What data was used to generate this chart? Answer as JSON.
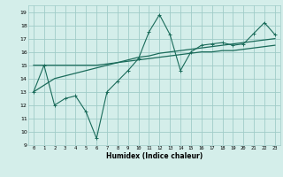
{
  "x": [
    0,
    1,
    2,
    3,
    4,
    5,
    6,
    7,
    8,
    9,
    10,
    11,
    12,
    13,
    14,
    15,
    16,
    17,
    18,
    19,
    20,
    21,
    22,
    23
  ],
  "line1_y": [
    15.0,
    15.0,
    15.0,
    15.0,
    15.0,
    15.0,
    15.0,
    15.1,
    15.2,
    15.3,
    15.4,
    15.5,
    15.6,
    15.7,
    15.8,
    15.9,
    16.0,
    16.0,
    16.1,
    16.1,
    16.2,
    16.3,
    16.4,
    16.5
  ],
  "line2_y": [
    13.0,
    13.5,
    14.0,
    14.2,
    14.4,
    14.6,
    14.8,
    15.0,
    15.2,
    15.4,
    15.6,
    15.7,
    15.9,
    16.0,
    16.1,
    16.2,
    16.3,
    16.4,
    16.5,
    16.6,
    16.7,
    16.8,
    16.9,
    17.0
  ],
  "line3_y": [
    13.0,
    15.0,
    12.0,
    12.5,
    12.7,
    11.5,
    9.5,
    13.0,
    13.8,
    14.6,
    15.5,
    17.5,
    18.8,
    17.3,
    14.6,
    16.0,
    16.5,
    16.6,
    16.7,
    16.5,
    16.6,
    17.4,
    18.2,
    17.3
  ],
  "line_color": "#1a6b5a",
  "bg_color": "#d4eeea",
  "grid_color": "#a0ccc8",
  "xlabel": "Humidex (Indice chaleur)",
  "ylabel_ticks": [
    9,
    10,
    11,
    12,
    13,
    14,
    15,
    16,
    17,
    18,
    19
  ],
  "xlim": [
    -0.5,
    23.5
  ],
  "ylim": [
    9,
    19.5
  ],
  "figsize": [
    3.2,
    2.0
  ],
  "dpi": 100
}
